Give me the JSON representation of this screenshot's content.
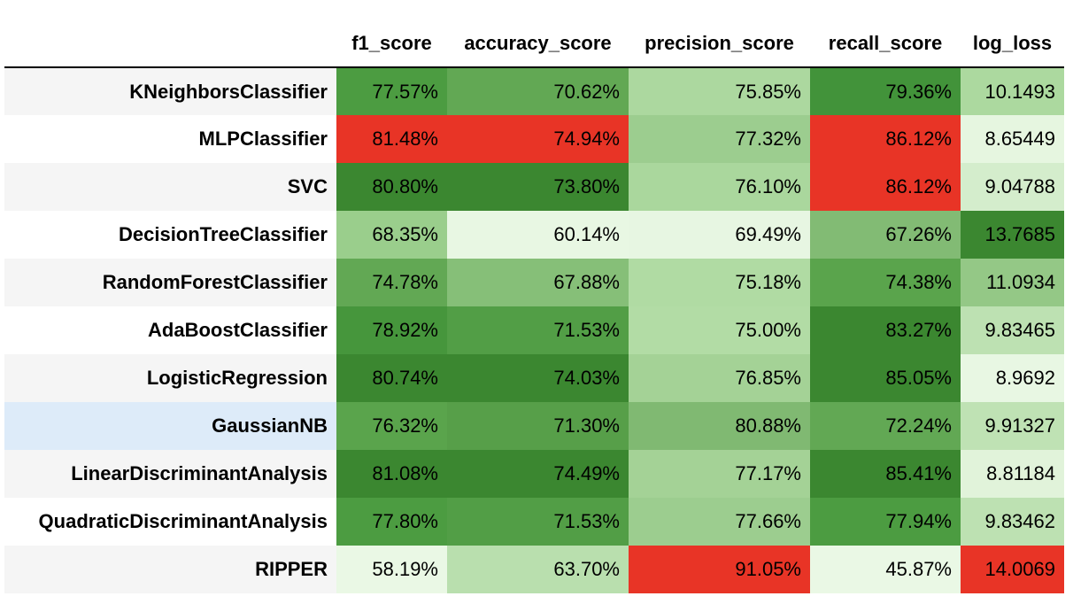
{
  "table": {
    "columns": [
      "f1_score",
      "accuracy_score",
      "precision_score",
      "recall_score",
      "log_loss"
    ],
    "highlight_row": "GaussianNB",
    "rows": [
      {
        "name": "KNeighborsClassifier",
        "values": [
          "77.57%",
          "70.62%",
          "75.85%",
          "79.36%",
          "10.1493"
        ],
        "colors": [
          "#4c9c41",
          "#62a854",
          "#acd89f",
          "#42933a",
          "#acd99f"
        ]
      },
      {
        "name": "MLPClassifier",
        "values": [
          "81.48%",
          "74.94%",
          "77.32%",
          "86.12%",
          "8.65449"
        ],
        "colors": [
          "#e83426",
          "#e83426",
          "#9ccd8f",
          "#e83426",
          "#e6f6e0"
        ]
      },
      {
        "name": "SVC",
        "values": [
          "80.80%",
          "73.80%",
          "76.10%",
          "86.12%",
          "9.04788"
        ],
        "colors": [
          "#3b8730",
          "#3b8730",
          "#aad79d",
          "#e83426",
          "#d4edcc"
        ]
      },
      {
        "name": "DecisionTreeClassifier",
        "values": [
          "68.35%",
          "60.14%",
          "69.49%",
          "67.26%",
          "13.7685"
        ],
        "colors": [
          "#9ace8c",
          "#e8f7e3",
          "#e7f6e2",
          "#82bb74",
          "#3b8730"
        ]
      },
      {
        "name": "RandomForestClassifier",
        "values": [
          "74.78%",
          "67.88%",
          "75.18%",
          "74.38%",
          "11.0934"
        ],
        "colors": [
          "#62a854",
          "#86bf78",
          "#b0dba3",
          "#5aa44c",
          "#94c886"
        ]
      },
      {
        "name": "AdaBoostClassifier",
        "values": [
          "78.92%",
          "71.53%",
          "75.00%",
          "83.27%",
          "9.83465"
        ],
        "colors": [
          "#46963c",
          "#529e46",
          "#b2dca5",
          "#3b8730",
          "#bde1b2"
        ]
      },
      {
        "name": "LogisticRegression",
        "values": [
          "80.74%",
          "74.03%",
          "76.85%",
          "85.05%",
          "8.9692"
        ],
        "colors": [
          "#3b8730",
          "#3b8730",
          "#a4d296",
          "#3b8730",
          "#e8f7e3"
        ]
      },
      {
        "name": "GaussianNB",
        "values": [
          "76.32%",
          "71.30%",
          "80.88%",
          "72.24%",
          "9.91327"
        ],
        "colors": [
          "#5aa44c",
          "#579f49",
          "#80b972",
          "#62a854",
          "#bfe2b4"
        ]
      },
      {
        "name": "LinearDiscriminantAnalysis",
        "values": [
          "81.08%",
          "74.49%",
          "77.17%",
          "85.41%",
          "8.81184"
        ],
        "colors": [
          "#3b8730",
          "#3b8730",
          "#a4d296",
          "#3b8730",
          "#e1f3da"
        ]
      },
      {
        "name": "QuadraticDiscriminantAnalysis",
        "values": [
          "77.80%",
          "71.53%",
          "77.66%",
          "77.94%",
          "9.83462"
        ],
        "colors": [
          "#4c9c41",
          "#529e46",
          "#9ccd8f",
          "#4c9c41",
          "#bde1b2"
        ]
      },
      {
        "name": "RIPPER",
        "values": [
          "58.19%",
          "63.70%",
          "91.05%",
          "45.87%",
          "14.0069"
        ],
        "colors": [
          "#eaf8e5",
          "#b9dfae",
          "#e83426",
          "#eaf8e5",
          "#e83426"
        ]
      }
    ]
  }
}
